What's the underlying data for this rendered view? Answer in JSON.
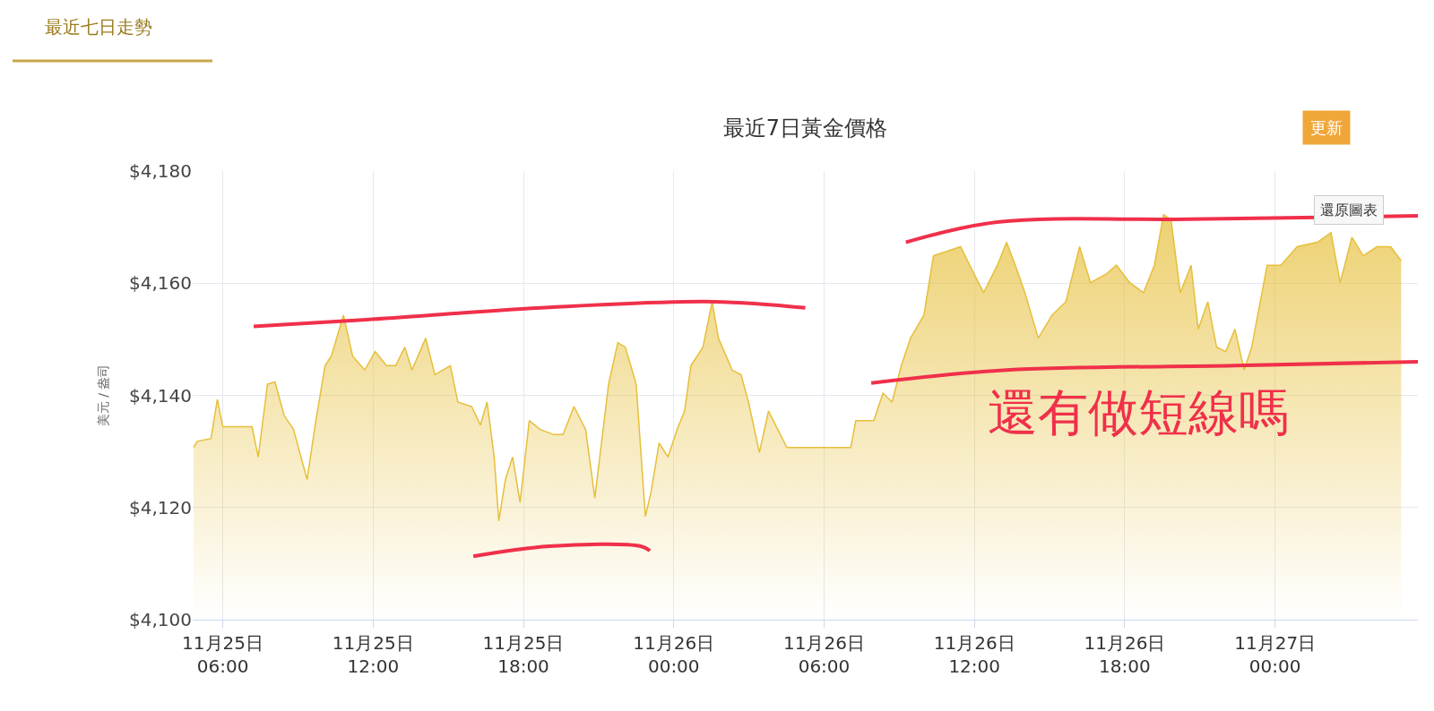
{
  "chart_data": {
    "type": "area",
    "title": "最近7日黃金價格",
    "ylabel": "美元 / 盎司",
    "annotations": [
      "最近七日走勢",
      "更新",
      "還原圖表",
      "還有做短線嗎"
    ],
    "xlim": [
      "--11-25T04:48",
      "--11-27T05:42"
    ],
    "xticks": [
      {
        "value": "--11-25T06:00",
        "label": "11月25日\n06:00"
      },
      {
        "value": "--11-25T12:00",
        "label": "11月25日\n12:00"
      },
      {
        "value": "--11-25T18:00",
        "label": "11月25日\n18:00"
      },
      {
        "value": "--11-26T00:00",
        "label": "11月26日\n00:00"
      },
      {
        "value": "--11-26T06:00",
        "label": "11月26日\n06:00"
      },
      {
        "value": "--11-26T12:00",
        "label": "11月26日\n12:00"
      },
      {
        "value": "--11-26T18:00",
        "label": "11月26日\n18:00"
      },
      {
        "value": "--11-27T00:00",
        "label": "11月27日\n00:00"
      }
    ],
    "ylim": [
      4100,
      4180
    ],
    "yticks": [
      {
        "value": 4100,
        "label": "$4,100"
      },
      {
        "value": 4120,
        "label": "$4,120"
      },
      {
        "value": 4140,
        "label": "$4,140"
      },
      {
        "value": 4160,
        "label": "$4,160"
      },
      {
        "value": 4180,
        "label": "$4,180"
      }
    ],
    "grid": true,
    "marker": "none",
    "line_style": "solid",
    "series": [
      {
        "color": "#e6bf3a",
        "x": [
          "--11-25T04:50",
          "--11-25T04:59",
          "--11-25T05:32",
          "--11-25T05:47",
          "--11-25T06:00",
          "--11-25T07:10",
          "--11-25T07:25",
          "--11-25T07:47",
          "--11-25T08:05",
          "--11-25T08:27",
          "--11-25T08:49",
          "--11-25T09:22",
          "--11-25T09:43",
          "--11-25T10:05",
          "--11-25T10:20",
          "--11-25T10:49",
          "--11-25T11:11",
          "--11-25T11:40",
          "--11-25T12:05",
          "--11-25T12:32",
          "--11-25T12:54",
          "--11-25T13:16",
          "--11-25T13:33",
          "--11-25T14:06",
          "--11-25T14:28",
          "--11-25T15:05",
          "--11-25T15:23",
          "--11-25T15:56",
          "--11-25T16:17",
          "--11-25T16:33",
          "--11-25T16:50",
          "--11-25T17:01",
          "--11-25T17:17",
          "--11-25T17:34",
          "--11-25T17:52",
          "--11-25T18:14",
          "--11-25T18:40",
          "--11-25T19:13",
          "--11-25T19:35",
          "--11-25T20:01",
          "--11-25T20:29",
          "--11-25T20:51",
          "--11-25T21:24",
          "--11-25T21:46",
          "--11-25T22:04",
          "--11-25T22:30",
          "--11-25T22:52",
          "--11-25T23:05",
          "--11-25T23:25",
          "--11-25T23:46",
          "--11-26T00:08",
          "--11-26T00:26",
          "--11-26T00:41",
          "--11-26T01:10",
          "--11-26T01:32",
          "--11-26T01:47",
          "--11-26T02:20",
          "--11-26T02:41",
          "--11-26T02:59",
          "--11-26T03:25",
          "--11-26T03:47",
          "--11-26T04:09",
          "--11-26T04:31",
          "--11-26T05:15",
          "--11-26T05:48",
          "--11-26T07:04",
          "--11-26T07:16",
          "--11-26T07:59",
          "--11-26T08:21",
          "--11-26T08:43",
          "--11-26T09:05",
          "--11-26T09:27",
          "--11-26T09:59",
          "--11-26T10:22",
          "--11-26T10:55",
          "--11-26T11:27",
          "--11-26T11:49",
          "--11-26T12:22",
          "--11-26T12:55",
          "--11-26T13:17",
          "--11-26T13:38",
          "--11-26T14:01",
          "--11-26T14:33",
          "--11-26T15:06",
          "--11-26T15:39",
          "--11-26T16:12",
          "--11-26T16:38",
          "--11-26T17:17",
          "--11-26T17:40",
          "--11-26T18:12",
          "--11-26T18:45",
          "--11-26T19:11",
          "--11-26T19:33",
          "--11-26T19:51",
          "--11-26T20:13",
          "--11-26T20:39",
          "--11-26T20:56",
          "--11-26T21:19",
          "--11-26T21:40",
          "--11-26T22:02",
          "--11-26T22:24",
          "--11-26T22:46",
          "--11-26T23:04",
          "--11-26T23:41",
          "--11-27T00:14",
          "--11-27T00:53",
          "--11-27T01:41",
          "--11-27T02:14",
          "--11-27T02:36",
          "--11-27T03:04",
          "--11-27T03:31",
          "--11-27T04:04",
          "--11-27T04:37",
          "--11-27T05:02"
        ],
        "values": [
          4130.7,
          4131.8,
          4132.3,
          4139.3,
          4134.4,
          4134.4,
          4129,
          4142,
          4142.4,
          4136.4,
          4134,
          4125,
          4135.5,
          4145.3,
          4147,
          4154.3,
          4147,
          4144.5,
          4147.8,
          4145.3,
          4145.3,
          4148.6,
          4144.5,
          4150.2,
          4143.7,
          4145.3,
          4138.8,
          4138,
          4134.7,
          4138.8,
          4129,
          4117.6,
          4125,
          4129,
          4120.9,
          4135.5,
          4133.9,
          4133,
          4133,
          4138,
          4133.9,
          4121.7,
          4142,
          4149.4,
          4148.6,
          4142,
          4118.4,
          4122.5,
          4131.5,
          4129,
          4133.9,
          4137.2,
          4145.3,
          4148.6,
          4156.7,
          4150.2,
          4144.5,
          4143.7,
          4138.8,
          4129.8,
          4137.2,
          4133.9,
          4130.7,
          4130.7,
          4130.7,
          4130.7,
          4135.5,
          4135.5,
          4140.4,
          4138.8,
          4145.3,
          4150.2,
          4154.3,
          4164.9,
          4165.7,
          4166.5,
          4163.2,
          4158.3,
          4163.2,
          4167.3,
          4163.2,
          4158.3,
          4150.2,
          4154.3,
          4156.7,
          4166.5,
          4160.1,
          4161.7,
          4163.2,
          4160.1,
          4158.3,
          4163.2,
          4172.2,
          4171.3,
          4158.3,
          4163.2,
          4151.8,
          4156.7,
          4148.6,
          4147.8,
          4151.8,
          4144.5,
          4148.6,
          4163.2,
          4163.2,
          4166.5,
          4167.3,
          4169,
          4160.1,
          4168.2,
          4164.9,
          4166.5,
          4166.5,
          4164
        ]
      },
      {
        "type": "line",
        "color": "#f0304a",
        "x": [
          "--11-25T07:14",
          "--11-25T11:44",
          "--11-25T19:02",
          "--11-26T01:36",
          "--11-26T05:15"
        ],
        "values": [
          4152.3,
          4153.5,
          4155.7,
          4156.7,
          4155.6
        ]
      },
      {
        "type": "line",
        "color": "#f0304a",
        "x": [
          "--11-25T16:00",
          "--11-25T19:02",
          "--11-25T22:41",
          "--11-25T23:03"
        ],
        "values": [
          4111.3,
          4113.1,
          4113.1,
          4112.3
        ]
      },
      {
        "type": "line",
        "color": "#f0304a",
        "x": [
          "--11-26T09:16",
          "--11-26T12:55",
          "--11-26T20:35",
          "--11-27T05:42"
        ],
        "values": [
          4167.3,
          4170.9,
          4171.4,
          4172
        ]
      },
      {
        "type": "line",
        "color": "#f0304a",
        "x": [
          "--11-26T07:53",
          "--11-26T13:17",
          "--11-26T22:24",
          "--11-27T05:42"
        ],
        "values": [
          4142.2,
          4144.5,
          4145.3,
          4146
        ]
      }
    ]
  }
}
